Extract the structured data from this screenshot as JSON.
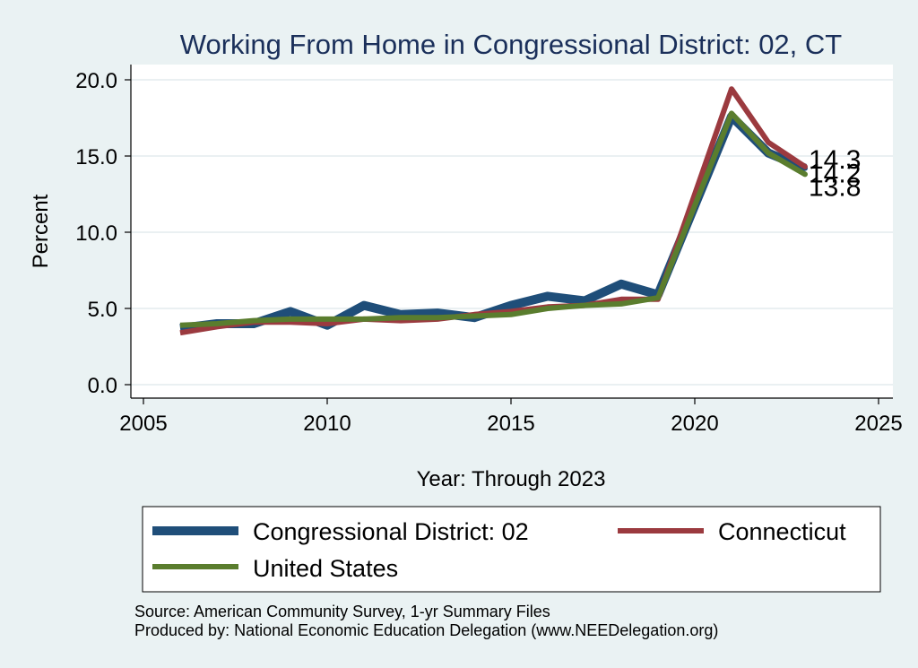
{
  "chart_data": {
    "type": "line",
    "title": "Working From Home in Congressional District: 02, CT",
    "xlabel": "Year: Through 2023",
    "ylabel": "Percent",
    "xlim": [
      2005,
      2025
    ],
    "ylim": [
      0,
      20
    ],
    "xticks": [
      2005,
      2010,
      2015,
      2020,
      2025
    ],
    "yticks": [
      0,
      5,
      10,
      15,
      20
    ],
    "xtick_labels": [
      "2005",
      "2010",
      "2015",
      "2020",
      "2025"
    ],
    "ytick_labels": [
      "0.0",
      "5.0",
      "10.0",
      "15.0",
      "20.0"
    ],
    "grid": true,
    "legend_position": "bottom",
    "x": [
      2006,
      2007,
      2008,
      2009,
      2010,
      2011,
      2012,
      2013,
      2014,
      2015,
      2016,
      2017,
      2018,
      2019,
      2021,
      2022,
      2023
    ],
    "series": [
      {
        "name": "Congressional District: 02",
        "color": "#1f4e79",
        "values": [
          3.7,
          4.0,
          4.0,
          4.8,
          3.9,
          5.2,
          4.6,
          4.7,
          4.4,
          5.2,
          5.8,
          5.5,
          6.6,
          5.9,
          17.6,
          15.2,
          14.2
        ],
        "end_label": "14.2"
      },
      {
        "name": "Connecticut",
        "color": "#9b3a3f",
        "values": [
          3.4,
          3.8,
          4.1,
          4.1,
          4.0,
          4.3,
          4.2,
          4.3,
          4.6,
          4.8,
          5.1,
          5.2,
          5.6,
          5.6,
          19.4,
          15.9,
          14.3
        ],
        "end_label": "14.3"
      },
      {
        "name": "United States",
        "color": "#5a7d2e",
        "values": [
          3.9,
          4.0,
          4.2,
          4.3,
          4.3,
          4.3,
          4.4,
          4.4,
          4.5,
          4.6,
          5.0,
          5.2,
          5.3,
          5.7,
          17.8,
          15.2,
          13.8
        ],
        "end_label": "13.8"
      }
    ]
  },
  "source_note": "Source: American Community Survey, 1-yr Summary Files",
  "producer_note": "Produced by: National Economic Education Delegation (www.NEEDelegation.org)"
}
